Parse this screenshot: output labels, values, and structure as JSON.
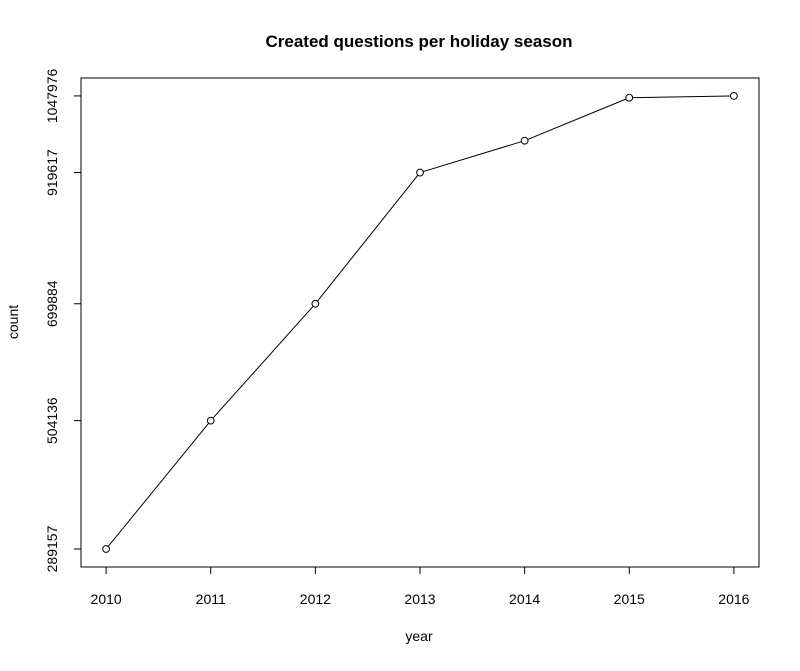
{
  "chart_data": {
    "type": "line",
    "title": "Created questions per holiday season",
    "xlabel": "year",
    "ylabel": "count",
    "x": [
      2010,
      2011,
      2012,
      2013,
      2014,
      2015,
      2016
    ],
    "x_ticks": [
      "2010",
      "2011",
      "2012",
      "2013",
      "2014",
      "2015",
      "2016"
    ],
    "y_ticks": [
      "289157",
      "504136",
      "699884",
      "919617",
      "1047976"
    ],
    "y_tick_values": [
      289157,
      504136,
      699884,
      919617,
      1047976
    ],
    "series": [
      {
        "values": [
          289157,
          504136,
          699884,
          919617,
          973000,
          1045000,
          1047976
        ],
        "color": "#000000",
        "marker": "open-circle"
      }
    ],
    "xlim": [
      2009.76,
      2016.24
    ],
    "ylim": [
      259000,
      1078000
    ],
    "grid": false,
    "legend": "none"
  }
}
